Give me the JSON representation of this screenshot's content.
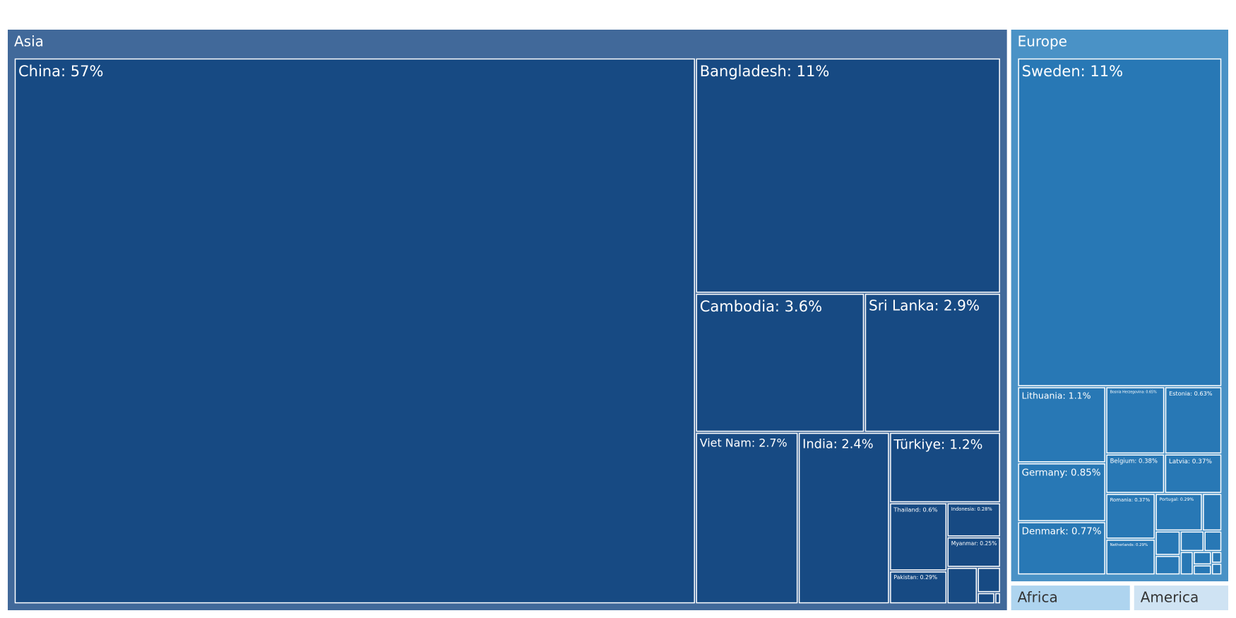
{
  "chart_data": {
    "type": "treemap",
    "regions": [
      {
        "name": "Asia",
        "value": 82.52,
        "header_color": "#41699a",
        "color": "#174a83",
        "text_color": "#ffffff",
        "children": [
          {
            "label": "China: 57%",
            "value": 57
          },
          {
            "label": "Bangladesh: 11%",
            "value": 11
          },
          {
            "label": "Cambodia: 3.6%",
            "value": 3.6
          },
          {
            "label": "Sri Lanka: 2.9%",
            "value": 2.9
          },
          {
            "label": "Viet Nam: 2.7%",
            "value": 2.7
          },
          {
            "label": "India: 2.4%",
            "value": 2.4
          },
          {
            "label": "Türkiye: 1.2%",
            "value": 1.2
          },
          {
            "label": "Thailand: 0.6%",
            "value": 0.6
          },
          {
            "label": "Pakistan: 0.29%",
            "value": 0.29
          },
          {
            "label": "Indonesia: 0.28%",
            "value": 0.28
          },
          {
            "label": "Myanmar: 0.25%",
            "value": 0.25
          },
          {
            "label": null,
            "value": 0.17
          },
          {
            "label": null,
            "value": 0.09
          },
          {
            "label": null,
            "value": 0.03
          },
          {
            "label": null,
            "value": 0.01
          }
        ]
      },
      {
        "name": "Europe",
        "value": 17.3,
        "header_color": "#4a92c6",
        "color": "#2878b5",
        "text_color": "#ffffff",
        "children": [
          {
            "label": "Sweden: 11%",
            "value": 11
          },
          {
            "label": "Lithuania: 1.1%",
            "value": 1.1
          },
          {
            "label": "Germany: 0.85%",
            "value": 0.85
          },
          {
            "label": "Denmark: 0.77%",
            "value": 0.77
          },
          {
            "label": "Bosnia Herzegovina: 0.65%",
            "value": 0.65
          },
          {
            "label": "Estonia: 0.63%",
            "value": 0.63
          },
          {
            "label": "Belgium: 0.38%",
            "value": 0.38
          },
          {
            "label": "Latvia: 0.37%",
            "value": 0.37
          },
          {
            "label": "Romania: 0.37%",
            "value": 0.37
          },
          {
            "label": "Netherlands: 0.29%",
            "value": 0.29
          },
          {
            "label": "Portugal: 0.29%",
            "value": 0.29
          },
          {
            "label": null,
            "value": 0.12
          },
          {
            "label": null,
            "value": 0.1
          },
          {
            "label": null,
            "value": 0.08
          },
          {
            "label": null,
            "value": 0.08
          },
          {
            "label": null,
            "value": 0.06
          },
          {
            "label": null,
            "value": 0.05
          },
          {
            "label": null,
            "value": 0.04
          },
          {
            "label": null,
            "value": 0.03
          },
          {
            "label": null,
            "value": 0.02
          },
          {
            "label": null,
            "value": 0.02
          }
        ]
      },
      {
        "name": "Africa",
        "value": 0.5,
        "header_color": "#aed4ef",
        "color": "#aed4ef",
        "text_color": "#333333",
        "children": []
      },
      {
        "name": "America",
        "value": 0.4,
        "header_color": "#cfe3f3",
        "color": "#cfe3f3",
        "text_color": "#333333",
        "children": []
      }
    ]
  }
}
